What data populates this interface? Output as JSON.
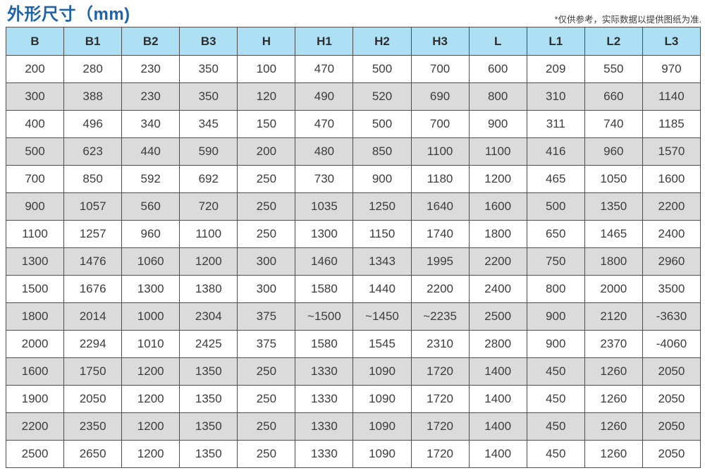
{
  "page": {
    "title": "外形尺寸（mm)",
    "note": "*仅供参考，实际数据以提供图纸为准."
  },
  "colors": {
    "title-color": "#1f63a8",
    "header-bg": "#aee0f5",
    "alt-row-bg": "#dbdbdb",
    "border-color": "#4d4d4d",
    "cell-text": "#3c3c3c"
  },
  "chart_data": {
    "type": "table",
    "title": "外形尺寸（mm)",
    "columns": [
      "B",
      "B1",
      "B2",
      "B3",
      "H",
      "H1",
      "H2",
      "H3",
      "L",
      "L1",
      "L2",
      "L3"
    ],
    "rows": [
      [
        "200",
        "280",
        "230",
        "350",
        "100",
        "470",
        "500",
        "700",
        "600",
        "209",
        "550",
        "970"
      ],
      [
        "300",
        "388",
        "230",
        "350",
        "120",
        "490",
        "520",
        "690",
        "800",
        "310",
        "660",
        "1140"
      ],
      [
        "400",
        "496",
        "340",
        "345",
        "150",
        "470",
        "500",
        "700",
        "900",
        "311",
        "740",
        "1185"
      ],
      [
        "500",
        "623",
        "440",
        "590",
        "200",
        "480",
        "850",
        "1100",
        "1100",
        "416",
        "960",
        "1570"
      ],
      [
        "700",
        "850",
        "592",
        "692",
        "250",
        "730",
        "900",
        "1180",
        "1200",
        "465",
        "1050",
        "1600"
      ],
      [
        "900",
        "1057",
        "560",
        "720",
        "250",
        "1035",
        "1250",
        "1640",
        "1600",
        "500",
        "1350",
        "2200"
      ],
      [
        "1100",
        "1257",
        "960",
        "1100",
        "250",
        "1300",
        "1150",
        "1740",
        "1800",
        "650",
        "1465",
        "2400"
      ],
      [
        "1300",
        "1476",
        "1060",
        "1200",
        "300",
        "1460",
        "1343",
        "1995",
        "2200",
        "750",
        "1800",
        "2960"
      ],
      [
        "1500",
        "1676",
        "1300",
        "1380",
        "300",
        "1580",
        "1440",
        "2200",
        "2400",
        "800",
        "2000",
        "3500"
      ],
      [
        "1800",
        "2014",
        "1000",
        "2304",
        "375",
        "~1500",
        "~1450",
        "~2235",
        "2500",
        "900",
        "2120",
        "-3630"
      ],
      [
        "2000",
        "2294",
        "1010",
        "2425",
        "375",
        "1580",
        "1545",
        "2310",
        "2800",
        "900",
        "2370",
        "-4060"
      ],
      [
        "1600",
        "1750",
        "1200",
        "1350",
        "250",
        "1330",
        "1090",
        "1720",
        "1400",
        "450",
        "1260",
        "2050"
      ],
      [
        "1900",
        "2050",
        "1200",
        "1350",
        "250",
        "1330",
        "1090",
        "1720",
        "1400",
        "450",
        "1260",
        "2050"
      ],
      [
        "2200",
        "2350",
        "1200",
        "1350",
        "250",
        "1330",
        "1090",
        "1720",
        "1400",
        "450",
        "1260",
        "2050"
      ],
      [
        "2500",
        "2650",
        "1200",
        "1350",
        "250",
        "1330",
        "1090",
        "1720",
        "1400",
        "450",
        "1260",
        "2050"
      ]
    ]
  }
}
